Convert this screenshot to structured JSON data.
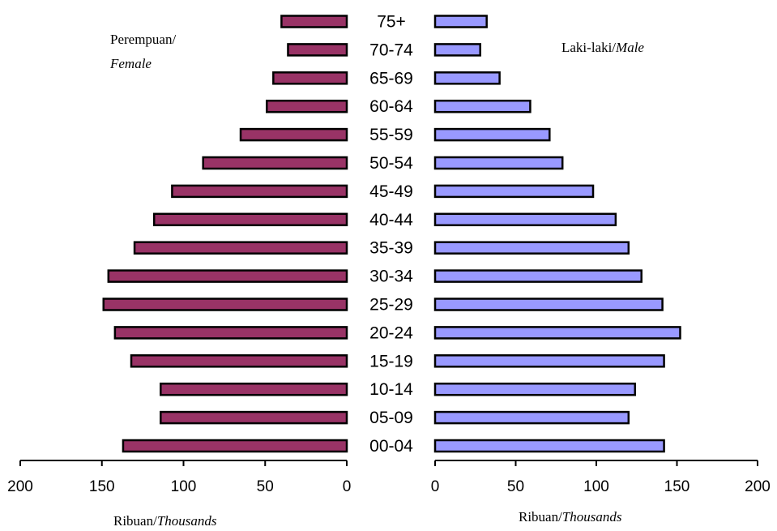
{
  "chart_data": {
    "type": "bar",
    "categories": [
      "00-04",
      "05-09",
      "10-14",
      "15-19",
      "20-24",
      "25-29",
      "30-34",
      "35-39",
      "40-44",
      "45-49",
      "50-54",
      "55-59",
      "60-64",
      "65-69",
      "70-74",
      "75+"
    ],
    "series": [
      {
        "name": "Perempuan/Female",
        "color": "#993366",
        "values": [
          137,
          114,
          114,
          132,
          142,
          149,
          146,
          130,
          118,
          107,
          88,
          65,
          49,
          45,
          36,
          40
        ]
      },
      {
        "name": "Laki-laki/Male",
        "color": "#9999ff",
        "values": [
          142,
          120,
          124,
          142,
          152,
          141,
          128,
          120,
          112,
          98,
          79,
          71,
          59,
          40,
          28,
          32
        ]
      }
    ],
    "legend": {
      "female_line1": "Perempuan/",
      "female_line2": "Female",
      "male_prefix": "Laki-laki/",
      "male_italic": "Male"
    },
    "left_axis": {
      "range": [
        200,
        0
      ],
      "ticks": [
        "200",
        "150",
        "100",
        "50",
        "0"
      ],
      "title_prefix": "Ribuan/",
      "title_italic": "Thousands"
    },
    "right_axis": {
      "range": [
        0,
        200
      ],
      "ticks": [
        "0",
        "50",
        "100",
        "150",
        "200"
      ],
      "title_prefix": "Ribuan/",
      "title_italic": "Thousands"
    },
    "grid": false
  }
}
